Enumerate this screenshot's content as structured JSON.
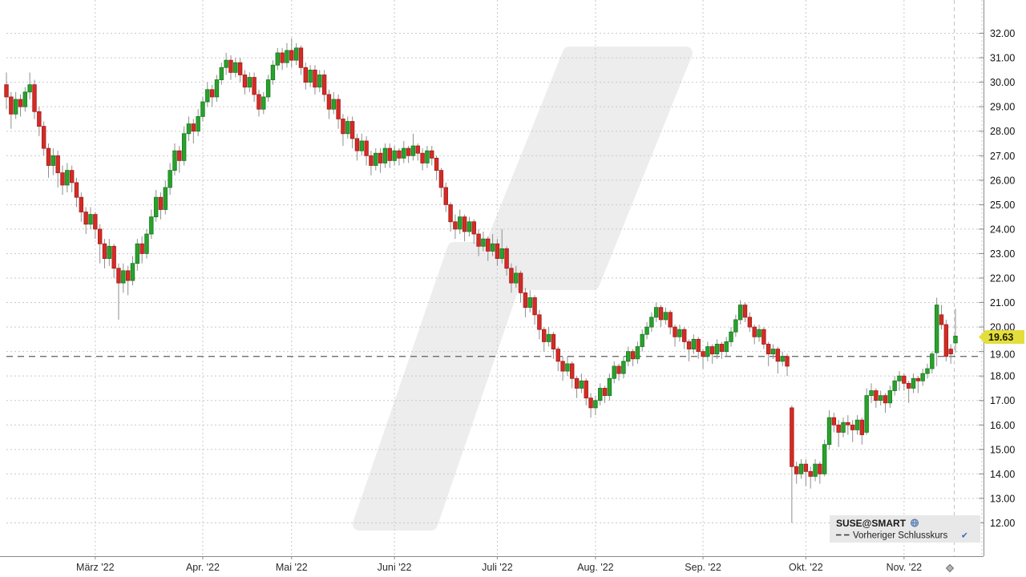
{
  "chart": {
    "instrument": "SUSE@SMART",
    "price_badge": "19.63",
    "legend": {
      "series_label": "SUSE@SMART",
      "overlay_label": "Vorheriger Schlusskurs",
      "overlay_check": "✔"
    }
  },
  "chart_data": {
    "type": "candlestick",
    "title": "SUSE@SMART",
    "x_labels": [
      "März '22",
      "Apr. '22",
      "Mai '22",
      "Juni '22",
      "Juli '22",
      "Aug. '22",
      "Sep. '22",
      "Okt. '22",
      "Nov. '22"
    ],
    "month_start_indices": [
      19,
      42,
      61,
      83,
      105,
      126,
      149,
      171,
      192
    ],
    "y_ticks": [
      12,
      13,
      14,
      15,
      16,
      17,
      18,
      19,
      20,
      21,
      22,
      23,
      24,
      25,
      26,
      27,
      28,
      29,
      30,
      31,
      32
    ],
    "ylim": [
      10.64,
      33.36
    ],
    "grid": true,
    "legend_position": "bottom-right",
    "previous_close": 18.8,
    "last_price": 19.63,
    "up_color": "#2aa12e",
    "down_color": "#d42b26",
    "wick_color": "#8f8f8f",
    "badge_bg": "#e4de3d",
    "prev_close_line_color": "#5f5f5f",
    "ohlc": [
      [
        29.9,
        30.4,
        28.9,
        29.4
      ],
      [
        29.4,
        29.6,
        28.1,
        28.7
      ],
      [
        28.7,
        29.6,
        28.5,
        29.3
      ],
      [
        29.3,
        29.5,
        28.6,
        29.0
      ],
      [
        29.0,
        29.8,
        28.8,
        29.6
      ],
      [
        29.6,
        30.4,
        29.3,
        29.9
      ],
      [
        29.9,
        30.1,
        28.5,
        28.8
      ],
      [
        28.8,
        29.0,
        27.8,
        28.2
      ],
      [
        28.2,
        28.4,
        27.0,
        27.3
      ],
      [
        27.3,
        27.5,
        26.1,
        26.6
      ],
      [
        26.6,
        27.3,
        26.2,
        27.0
      ],
      [
        27.0,
        27.2,
        25.7,
        26.3
      ],
      [
        26.3,
        26.6,
        25.4,
        25.8
      ],
      [
        25.8,
        26.7,
        25.5,
        26.4
      ],
      [
        26.4,
        26.6,
        25.5,
        25.9
      ],
      [
        25.9,
        26.1,
        24.9,
        25.3
      ],
      [
        25.3,
        25.5,
        24.3,
        24.7
      ],
      [
        24.7,
        24.9,
        23.8,
        24.2
      ],
      [
        24.2,
        24.9,
        24.0,
        24.6
      ],
      [
        24.6,
        24.7,
        23.6,
        24.0
      ],
      [
        24.0,
        24.2,
        22.6,
        23.4
      ],
      [
        23.4,
        23.6,
        22.4,
        22.8
      ],
      [
        22.8,
        23.6,
        22.5,
        23.3
      ],
      [
        23.3,
        23.4,
        22.0,
        22.4
      ],
      [
        22.4,
        22.6,
        20.3,
        21.8
      ],
      [
        21.8,
        22.6,
        21.4,
        22.3
      ],
      [
        22.3,
        22.5,
        21.3,
        21.9
      ],
      [
        21.9,
        22.9,
        21.7,
        22.6
      ],
      [
        22.6,
        23.6,
        22.3,
        23.4
      ],
      [
        23.4,
        23.7,
        22.6,
        23.0
      ],
      [
        23.0,
        24.0,
        22.8,
        23.8
      ],
      [
        23.8,
        24.8,
        23.6,
        24.5
      ],
      [
        24.5,
        25.6,
        24.3,
        25.3
      ],
      [
        25.3,
        25.5,
        24.4,
        24.8
      ],
      [
        24.8,
        26.0,
        24.6,
        25.7
      ],
      [
        25.7,
        26.7,
        25.4,
        26.4
      ],
      [
        26.4,
        27.5,
        26.2,
        27.2
      ],
      [
        27.2,
        27.4,
        26.3,
        26.8
      ],
      [
        26.8,
        28.2,
        26.6,
        27.9
      ],
      [
        27.9,
        28.6,
        27.6,
        28.3
      ],
      [
        28.3,
        28.5,
        27.5,
        28.0
      ],
      [
        28.0,
        28.9,
        27.8,
        28.6
      ],
      [
        28.6,
        29.4,
        28.4,
        29.2
      ],
      [
        29.2,
        30.0,
        29.0,
        29.7
      ],
      [
        29.7,
        29.9,
        29.0,
        29.4
      ],
      [
        29.4,
        30.3,
        29.2,
        30.1
      ],
      [
        30.1,
        30.8,
        29.9,
        30.6
      ],
      [
        30.6,
        31.2,
        30.3,
        30.9
      ],
      [
        30.9,
        31.1,
        30.1,
        30.4
      ],
      [
        30.4,
        31.0,
        30.2,
        30.8
      ],
      [
        30.8,
        31.0,
        30.0,
        30.3
      ],
      [
        30.3,
        30.5,
        29.5,
        29.8
      ],
      [
        29.8,
        30.4,
        29.6,
        30.2
      ],
      [
        30.2,
        30.4,
        29.2,
        29.5
      ],
      [
        29.5,
        29.7,
        28.6,
        28.9
      ],
      [
        28.9,
        29.6,
        28.7,
        29.4
      ],
      [
        29.4,
        30.3,
        29.2,
        30.1
      ],
      [
        30.1,
        30.9,
        29.9,
        30.7
      ],
      [
        30.7,
        31.4,
        30.5,
        31.2
      ],
      [
        31.2,
        31.4,
        30.5,
        30.8
      ],
      [
        30.8,
        31.6,
        30.6,
        31.3
      ],
      [
        31.3,
        31.8,
        30.6,
        30.9
      ],
      [
        30.9,
        31.6,
        30.7,
        31.4
      ],
      [
        31.4,
        31.5,
        30.3,
        30.6
      ],
      [
        30.6,
        30.8,
        29.7,
        30.0
      ],
      [
        30.0,
        30.7,
        29.8,
        30.5
      ],
      [
        30.5,
        30.7,
        29.5,
        29.8
      ],
      [
        29.8,
        30.5,
        29.6,
        30.3
      ],
      [
        30.3,
        30.5,
        29.2,
        29.5
      ],
      [
        29.5,
        29.7,
        28.5,
        28.9
      ],
      [
        28.9,
        29.6,
        28.7,
        29.3
      ],
      [
        29.3,
        29.5,
        28.1,
        28.5
      ],
      [
        28.5,
        28.7,
        27.4,
        27.9
      ],
      [
        27.9,
        28.6,
        27.7,
        28.4
      ],
      [
        28.4,
        28.6,
        27.3,
        27.7
      ],
      [
        27.7,
        27.9,
        26.8,
        27.2
      ],
      [
        27.2,
        27.9,
        27.0,
        27.6
      ],
      [
        27.6,
        27.8,
        26.6,
        27.0
      ],
      [
        27.0,
        27.2,
        26.2,
        26.6
      ],
      [
        26.6,
        27.3,
        26.4,
        27.1
      ],
      [
        27.1,
        27.3,
        26.3,
        26.7
      ],
      [
        26.7,
        27.5,
        26.5,
        27.3
      ],
      [
        27.3,
        27.5,
        26.5,
        26.8
      ],
      [
        26.8,
        27.4,
        26.6,
        27.2
      ],
      [
        27.2,
        27.3,
        26.6,
        26.9
      ],
      [
        26.9,
        27.6,
        26.7,
        27.3
      ],
      [
        27.3,
        27.4,
        26.7,
        27.0
      ],
      [
        27.0,
        27.9,
        26.8,
        27.4
      ],
      [
        27.4,
        27.5,
        26.8,
        27.1
      ],
      [
        27.1,
        27.3,
        26.4,
        26.7
      ],
      [
        26.7,
        27.4,
        26.5,
        27.2
      ],
      [
        27.2,
        27.4,
        26.6,
        26.9
      ],
      [
        26.9,
        27.0,
        26.0,
        26.4
      ],
      [
        26.4,
        26.5,
        25.3,
        25.7
      ],
      [
        25.7,
        25.9,
        24.7,
        25.0
      ],
      [
        25.0,
        25.1,
        23.9,
        24.3
      ],
      [
        24.3,
        24.6,
        23.6,
        24.0
      ],
      [
        24.0,
        24.8,
        23.8,
        24.5
      ],
      [
        24.5,
        24.6,
        23.5,
        23.9
      ],
      [
        23.9,
        24.5,
        23.7,
        24.3
      ],
      [
        24.3,
        24.4,
        23.4,
        23.8
      ],
      [
        23.8,
        24.0,
        22.9,
        23.3
      ],
      [
        23.3,
        23.9,
        23.1,
        23.6
      ],
      [
        23.6,
        23.7,
        22.7,
        23.1
      ],
      [
        23.1,
        23.8,
        22.9,
        23.4
      ],
      [
        23.4,
        23.6,
        22.5,
        22.8
      ],
      [
        22.8,
        24.0,
        22.6,
        23.2
      ],
      [
        23.2,
        23.3,
        22.1,
        22.4
      ],
      [
        22.4,
        22.6,
        21.4,
        21.8
      ],
      [
        21.8,
        22.5,
        21.6,
        22.2
      ],
      [
        22.2,
        22.3,
        21.0,
        21.4
      ],
      [
        21.4,
        21.6,
        20.4,
        20.8
      ],
      [
        20.8,
        21.5,
        20.6,
        21.2
      ],
      [
        21.2,
        21.3,
        20.1,
        20.5
      ],
      [
        20.5,
        20.7,
        19.5,
        19.9
      ],
      [
        19.9,
        20.0,
        19.0,
        19.4
      ],
      [
        19.4,
        20.0,
        19.2,
        19.7
      ],
      [
        19.7,
        19.8,
        18.7,
        19.1
      ],
      [
        19.1,
        19.2,
        18.2,
        18.6
      ],
      [
        18.6,
        18.8,
        17.8,
        18.2
      ],
      [
        18.2,
        18.8,
        18.0,
        18.5
      ],
      [
        18.5,
        18.6,
        17.5,
        17.9
      ],
      [
        17.9,
        18.0,
        17.1,
        17.5
      ],
      [
        17.5,
        18.1,
        17.3,
        17.8
      ],
      [
        17.8,
        17.9,
        16.8,
        17.1
      ],
      [
        17.1,
        17.3,
        16.3,
        16.7
      ],
      [
        16.7,
        17.2,
        16.4,
        17.0
      ],
      [
        17.0,
        17.7,
        16.8,
        17.5
      ],
      [
        17.5,
        17.6,
        16.9,
        17.2
      ],
      [
        17.2,
        18.1,
        17.0,
        17.9
      ],
      [
        17.9,
        18.6,
        17.7,
        18.4
      ],
      [
        18.4,
        18.5,
        17.8,
        18.1
      ],
      [
        18.1,
        18.8,
        17.9,
        18.6
      ],
      [
        18.6,
        19.2,
        18.4,
        19.0
      ],
      [
        19.0,
        19.1,
        18.4,
        18.7
      ],
      [
        18.7,
        19.4,
        18.5,
        19.2
      ],
      [
        19.2,
        19.9,
        19.0,
        19.7
      ],
      [
        19.7,
        20.2,
        19.5,
        20.0
      ],
      [
        20.0,
        20.6,
        19.8,
        20.4
      ],
      [
        20.4,
        21.0,
        20.2,
        20.8
      ],
      [
        20.8,
        20.9,
        20.0,
        20.3
      ],
      [
        20.3,
        20.8,
        20.1,
        20.6
      ],
      [
        20.6,
        20.7,
        19.7,
        20.0
      ],
      [
        20.0,
        20.1,
        19.2,
        19.6
      ],
      [
        19.6,
        20.1,
        19.4,
        19.9
      ],
      [
        19.9,
        20.0,
        19.1,
        19.4
      ],
      [
        19.4,
        19.5,
        18.6,
        19.1
      ],
      [
        19.1,
        19.7,
        18.9,
        19.5
      ],
      [
        19.5,
        19.6,
        18.7,
        19.0
      ],
      [
        19.0,
        19.1,
        18.3,
        18.8
      ],
      [
        18.8,
        19.4,
        18.6,
        19.2
      ],
      [
        19.2,
        19.3,
        18.5,
        18.9
      ],
      [
        18.9,
        19.5,
        18.7,
        19.3
      ],
      [
        19.3,
        19.4,
        18.7,
        19.0
      ],
      [
        19.0,
        19.6,
        18.8,
        19.4
      ],
      [
        19.4,
        20.0,
        19.2,
        19.8
      ],
      [
        19.8,
        20.5,
        19.6,
        20.3
      ],
      [
        20.3,
        21.1,
        20.1,
        20.9
      ],
      [
        20.9,
        21.0,
        20.2,
        20.4
      ],
      [
        20.4,
        20.6,
        19.8,
        20.0
      ],
      [
        20.0,
        20.1,
        19.3,
        19.6
      ],
      [
        19.6,
        20.1,
        19.4,
        19.9
      ],
      [
        19.9,
        20.0,
        19.1,
        19.3
      ],
      [
        19.3,
        19.4,
        18.4,
        18.9
      ],
      [
        18.9,
        19.3,
        18.7,
        19.1
      ],
      [
        19.1,
        19.2,
        18.1,
        18.6
      ],
      [
        18.6,
        19.0,
        18.4,
        18.8
      ],
      [
        18.8,
        18.9,
        18.0,
        18.4
      ],
      [
        16.7,
        16.8,
        12.0,
        14.3
      ],
      [
        14.3,
        14.5,
        13.6,
        14.0
      ],
      [
        14.0,
        14.6,
        13.8,
        14.4
      ],
      [
        14.4,
        14.6,
        13.5,
        14.1
      ],
      [
        14.1,
        14.3,
        13.4,
        13.9
      ],
      [
        13.9,
        14.6,
        13.7,
        14.4
      ],
      [
        14.4,
        14.5,
        13.6,
        14.0
      ],
      [
        14.0,
        15.4,
        13.9,
        15.2
      ],
      [
        15.2,
        16.6,
        15.0,
        16.3
      ],
      [
        16.3,
        16.5,
        15.7,
        16.0
      ],
      [
        16.0,
        16.2,
        15.1,
        15.7
      ],
      [
        15.7,
        16.3,
        15.5,
        16.1
      ],
      [
        16.1,
        16.4,
        15.6,
        16.0
      ],
      [
        16.0,
        16.2,
        15.3,
        15.8
      ],
      [
        15.8,
        16.4,
        15.6,
        16.2
      ],
      [
        16.2,
        16.3,
        15.2,
        15.6
      ],
      [
        15.7,
        17.5,
        15.6,
        17.2
      ],
      [
        17.2,
        17.7,
        16.9,
        17.4
      ],
      [
        17.4,
        17.5,
        16.7,
        17.0
      ],
      [
        17.0,
        17.4,
        16.8,
        17.2
      ],
      [
        17.2,
        17.3,
        16.5,
        16.9
      ],
      [
        16.9,
        17.6,
        16.7,
        17.4
      ],
      [
        17.4,
        18.0,
        17.2,
        17.8
      ],
      [
        17.8,
        18.2,
        17.4,
        18.0
      ],
      [
        18.0,
        18.1,
        17.4,
        17.7
      ],
      [
        17.7,
        17.8,
        16.9,
        17.5
      ],
      [
        17.5,
        18.1,
        17.3,
        17.9
      ],
      [
        17.9,
        18.0,
        17.3,
        17.8
      ],
      [
        17.8,
        18.3,
        17.6,
        18.1
      ],
      [
        18.1,
        18.5,
        17.9,
        18.3
      ],
      [
        18.3,
        19.0,
        18.1,
        18.9
      ],
      [
        18.95,
        21.2,
        18.4,
        20.9
      ],
      [
        20.5,
        20.9,
        19.9,
        20.1
      ],
      [
        20.1,
        20.3,
        18.6,
        18.8
      ],
      [
        19.1,
        19.3,
        18.5,
        18.9
      ],
      [
        19.35,
        20.75,
        18.95,
        19.63
      ]
    ]
  }
}
